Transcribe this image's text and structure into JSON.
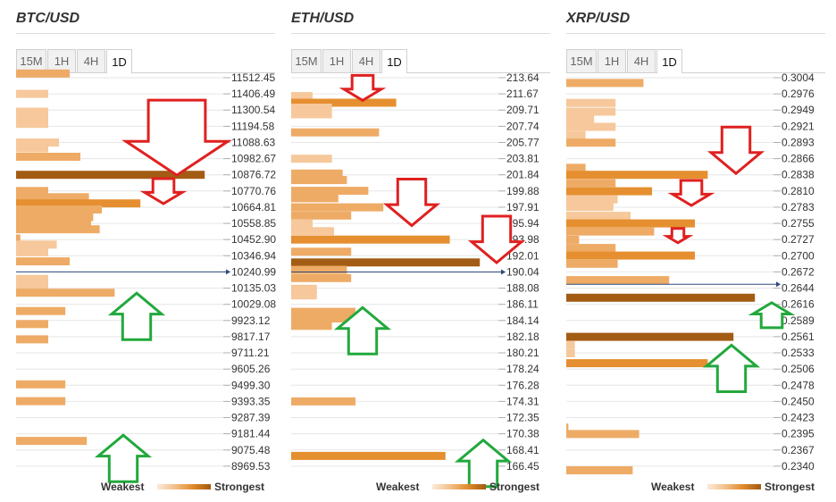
{
  "colors": {
    "bar_light": "#f6c89b",
    "bar_mid": "#eeab66",
    "bar_orange": "#e58f30",
    "bar_dark": "#a35c14",
    "arrow_down": "#e02020",
    "arrow_up": "#22a83c",
    "current_line": "#2f4b7c"
  },
  "legend": {
    "weak": "Weakest",
    "strong": "Strongest"
  },
  "panels": [
    {
      "title": "BTC/USD",
      "tabs": [
        "15M",
        "1H",
        "4H",
        "1D"
      ],
      "active_tab": "1D"
    },
    {
      "title": "ETH/USD",
      "tabs": [
        "15M",
        "1H",
        "4H",
        "1D"
      ],
      "active_tab": "1D"
    },
    {
      "title": "XRP/USD",
      "tabs": [
        "15M",
        "1H",
        "4H",
        "1D"
      ],
      "active_tab": "1D"
    }
  ],
  "chart_data": [
    {
      "type": "bar",
      "title": "BTC/USD",
      "orientation": "horizontal",
      "price_levels": [
        "11512.45",
        "11406.49",
        "11300.54",
        "11194.58",
        "11088.63",
        "10982.67",
        "10876.72",
        "10770.76",
        "10664.81",
        "10558.85",
        "10452.90",
        "10346.94",
        "10240.99",
        "10135.03",
        "10029.08",
        "9923.12",
        "9817.17",
        "9711.21",
        "9605.26",
        "9499.30",
        "9393.35",
        "9287.39",
        "9181.44",
        "9075.48",
        "8969.53"
      ],
      "current_price": 10240.99,
      "bars": [
        {
          "price": 11540,
          "strength": 25,
          "level": "mid"
        },
        {
          "price": 11406.49,
          "strength": 15,
          "level": "light"
        },
        {
          "price": 11290,
          "strength": 15,
          "level": "light"
        },
        {
          "price": 11250,
          "strength": 15,
          "level": "light"
        },
        {
          "price": 11210,
          "strength": 15,
          "level": "light"
        },
        {
          "price": 11088.63,
          "strength": 20,
          "level": "light"
        },
        {
          "price": 11050,
          "strength": 15,
          "level": "light"
        },
        {
          "price": 10995,
          "strength": 30,
          "level": "mid"
        },
        {
          "price": 10876.72,
          "strength": 88,
          "level": "dark"
        },
        {
          "price": 10770.76,
          "strength": 15,
          "level": "mid"
        },
        {
          "price": 10730,
          "strength": 34,
          "level": "mid"
        },
        {
          "price": 10690,
          "strength": 58,
          "level": "orange"
        },
        {
          "price": 10650,
          "strength": 40,
          "level": "mid"
        },
        {
          "price": 10600,
          "strength": 36,
          "level": "mid"
        },
        {
          "price": 10560,
          "strength": 35,
          "level": "mid"
        },
        {
          "price": 10520,
          "strength": 39,
          "level": "mid"
        },
        {
          "price": 10460,
          "strength": 2,
          "level": "mid"
        },
        {
          "price": 10420,
          "strength": 19,
          "level": "light"
        },
        {
          "price": 10370,
          "strength": 15,
          "level": "light"
        },
        {
          "price": 10310,
          "strength": 25,
          "level": "mid"
        },
        {
          "price": 10195,
          "strength": 15,
          "level": "light"
        },
        {
          "price": 10155,
          "strength": 15,
          "level": "light"
        },
        {
          "price": 10105,
          "strength": 46,
          "level": "mid"
        },
        {
          "price": 9985,
          "strength": 23,
          "level": "mid"
        },
        {
          "price": 9900,
          "strength": 15,
          "level": "mid"
        },
        {
          "price": 9800,
          "strength": 15,
          "level": "mid"
        },
        {
          "price": 9505,
          "strength": 23,
          "level": "mid"
        },
        {
          "price": 9395,
          "strength": 23,
          "level": "mid"
        },
        {
          "price": 9135,
          "strength": 33,
          "level": "mid"
        }
      ],
      "arrows": [
        {
          "dir": "down",
          "price": 11120,
          "size": "large"
        },
        {
          "dir": "down",
          "price": 10770,
          "size": "small"
        },
        {
          "dir": "up",
          "price": 9950,
          "size": "medium"
        },
        {
          "dir": "up",
          "price": 9020,
          "size": "medium"
        }
      ]
    },
    {
      "type": "bar",
      "title": "ETH/USD",
      "orientation": "horizontal",
      "price_levels": [
        "213.64",
        "211.67",
        "209.71",
        "207.74",
        "205.77",
        "203.81",
        "201.84",
        "199.88",
        "197.91",
        "195.94",
        "193.98",
        "192.01",
        "190.04",
        "188.08",
        "186.11",
        "184.14",
        "182.18",
        "180.21",
        "178.24",
        "176.28",
        "174.31",
        "172.35",
        "170.38",
        "168.41",
        "166.45"
      ],
      "current_price": 190.04,
      "bars": [
        {
          "price": 211.4,
          "strength": 10,
          "level": "light"
        },
        {
          "price": 210.6,
          "strength": 49,
          "level": "orange"
        },
        {
          "price": 210.0,
          "strength": 19,
          "level": "light"
        },
        {
          "price": 209.2,
          "strength": 19,
          "level": "light"
        },
        {
          "price": 207.0,
          "strength": 41,
          "level": "mid"
        },
        {
          "price": 203.8,
          "strength": 19,
          "level": "light"
        },
        {
          "price": 202.0,
          "strength": 24,
          "level": "mid"
        },
        {
          "price": 201.2,
          "strength": 26,
          "level": "mid"
        },
        {
          "price": 199.9,
          "strength": 36,
          "level": "mid"
        },
        {
          "price": 199.0,
          "strength": 22,
          "level": "mid"
        },
        {
          "price": 197.9,
          "strength": 43,
          "level": "mid"
        },
        {
          "price": 196.9,
          "strength": 28,
          "level": "mid"
        },
        {
          "price": 195.9,
          "strength": 10,
          "level": "light"
        },
        {
          "price": 195.0,
          "strength": 20,
          "level": "light"
        },
        {
          "price": 193.98,
          "strength": 74,
          "level": "orange"
        },
        {
          "price": 192.5,
          "strength": 28,
          "level": "mid"
        },
        {
          "price": 191.2,
          "strength": 88,
          "level": "dark"
        },
        {
          "price": 190.3,
          "strength": 26,
          "level": "mid"
        },
        {
          "price": 189.3,
          "strength": 28,
          "level": "mid"
        },
        {
          "price": 188.0,
          "strength": 12,
          "level": "light"
        },
        {
          "price": 187.2,
          "strength": 12,
          "level": "light"
        },
        {
          "price": 185.2,
          "strength": 30,
          "level": "mid"
        },
        {
          "price": 184.4,
          "strength": 30,
          "level": "mid"
        },
        {
          "price": 183.5,
          "strength": 19,
          "level": "mid"
        },
        {
          "price": 174.31,
          "strength": 30,
          "level": "mid"
        },
        {
          "price": 167.7,
          "strength": 72,
          "level": "orange"
        }
      ],
      "arrows": [
        {
          "dir": "down",
          "price": 212.4,
          "size": "small"
        },
        {
          "dir": "down",
          "price": 198.5,
          "size": "medium"
        },
        {
          "dir": "down",
          "price": 194.0,
          "size": "medium"
        },
        {
          "dir": "up",
          "price": 182.9,
          "size": "medium"
        },
        {
          "dir": "up",
          "price": 166.8,
          "size": "medium"
        }
      ]
    },
    {
      "type": "bar",
      "title": "XRP/USD",
      "orientation": "horizontal",
      "price_levels": [
        "0.3004",
        "0.2976",
        "0.2949",
        "0.2921",
        "0.2893",
        "0.2866",
        "0.2838",
        "0.2810",
        "0.2783",
        "0.2755",
        "0.2727",
        "0.2700",
        "0.2672",
        "0.2644",
        "0.2616",
        "0.2589",
        "0.2561",
        "0.2533",
        "0.2506",
        "0.2478",
        "0.2450",
        "0.2423",
        "0.2395",
        "0.2367",
        "0.2340"
      ],
      "current_price": 0.2651,
      "bars": [
        {
          "price": 0.2995,
          "strength": 36,
          "level": "mid"
        },
        {
          "price": 0.2961,
          "strength": 23,
          "level": "light"
        },
        {
          "price": 0.2946,
          "strength": 23,
          "level": "light"
        },
        {
          "price": 0.2933,
          "strength": 13,
          "level": "light"
        },
        {
          "price": 0.292,
          "strength": 23,
          "level": "light"
        },
        {
          "price": 0.2906,
          "strength": 9,
          "level": "light"
        },
        {
          "price": 0.2893,
          "strength": 23,
          "level": "mid"
        },
        {
          "price": 0.285,
          "strength": 9,
          "level": "mid"
        },
        {
          "price": 0.2838,
          "strength": 66,
          "level": "orange"
        },
        {
          "price": 0.2824,
          "strength": 23,
          "level": "mid"
        },
        {
          "price": 0.281,
          "strength": 40,
          "level": "orange"
        },
        {
          "price": 0.2796,
          "strength": 24,
          "level": "light"
        },
        {
          "price": 0.2783,
          "strength": 22,
          "level": "light"
        },
        {
          "price": 0.2768,
          "strength": 30,
          "level": "light"
        },
        {
          "price": 0.2755,
          "strength": 60,
          "level": "orange"
        },
        {
          "price": 0.2741,
          "strength": 41,
          "level": "mid"
        },
        {
          "price": 0.2727,
          "strength": 6,
          "level": "mid"
        },
        {
          "price": 0.2713,
          "strength": 23,
          "level": "mid"
        },
        {
          "price": 0.27,
          "strength": 60,
          "level": "orange"
        },
        {
          "price": 0.2686,
          "strength": 24,
          "level": "mid"
        },
        {
          "price": 0.2658,
          "strength": 48,
          "level": "mid"
        },
        {
          "price": 0.2628,
          "strength": 88,
          "level": "dark"
        },
        {
          "price": 0.2561,
          "strength": 78,
          "level": "dark"
        },
        {
          "price": 0.2547,
          "strength": 4,
          "level": "light"
        },
        {
          "price": 0.2533,
          "strength": 4,
          "level": "light"
        },
        {
          "price": 0.2516,
          "strength": 66,
          "level": "orange"
        },
        {
          "price": 0.2406,
          "strength": 1,
          "level": "mid"
        },
        {
          "price": 0.2395,
          "strength": 34,
          "level": "mid"
        },
        {
          "price": 0.2333,
          "strength": 31,
          "level": "mid"
        }
      ],
      "arrows": [
        {
          "dir": "down",
          "price": 0.288,
          "size": "medium"
        },
        {
          "dir": "down",
          "price": 0.2807,
          "size": "small"
        },
        {
          "dir": "down",
          "price": 0.2734,
          "size": "tiny"
        },
        {
          "dir": "up",
          "price": 0.2598,
          "size": "small"
        },
        {
          "dir": "up",
          "price": 0.2507,
          "size": "medium"
        }
      ]
    }
  ]
}
